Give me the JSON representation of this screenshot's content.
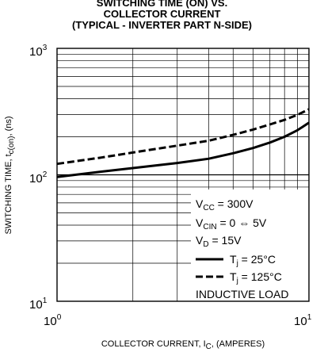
{
  "chart_data": {
    "type": "line",
    "title_lines": [
      "SWITCHING TIME (ON) VS.",
      "COLLECTOR CURRENT",
      "(TYPICAL - INVERTER PART N-SIDE)"
    ],
    "xlabel": {
      "main": "COLLECTOR CURRENT, I",
      "sub": "C",
      "tail": ", (AMPERES)"
    },
    "ylabel": {
      "main": "SWITCHING TIME, t",
      "sub": "c(on)",
      "tail": ", (ns)"
    },
    "x_scale": "log",
    "y_scale": "log",
    "xlim": [
      1,
      10
    ],
    "ylim": [
      10,
      1000
    ],
    "x_ticks": [
      {
        "base": "10",
        "exp": "0"
      },
      {
        "base": "10",
        "exp": "1"
      }
    ],
    "y_ticks": [
      {
        "base": "10",
        "exp": "1"
      },
      {
        "base": "10",
        "exp": "2"
      },
      {
        "base": "10",
        "exp": "3"
      }
    ],
    "grid": true,
    "series": [
      {
        "name": "Tj = 25°C",
        "label_main": "T",
        "label_sub": "j",
        "label_tail": " = 25°C",
        "style": "solid",
        "x": [
          1,
          1.5,
          2,
          3,
          4,
          5,
          6,
          7,
          8,
          9,
          10
        ],
        "y": [
          96,
          106,
          113,
          124,
          134,
          148,
          163,
          180,
          200,
          225,
          258
        ]
      },
      {
        "name": "Tj = 125°C",
        "label_main": "T",
        "label_sub": "j",
        "label_tail": " = 125°C",
        "style": "dashed",
        "x": [
          1,
          1.5,
          2,
          3,
          4,
          5,
          6,
          7,
          8,
          9,
          10
        ],
        "y": [
          122,
          137,
          150,
          170,
          186,
          207,
          228,
          250,
          272,
          298,
          330
        ]
      }
    ],
    "conditions": [
      {
        "main": "V",
        "sub": "CC",
        "tail": " = 300V"
      },
      {
        "main": "V",
        "sub": "CIN",
        "tail": " = 0 ⇔ 5V"
      },
      {
        "main": "V",
        "sub": "D",
        "tail": " = 15V"
      }
    ],
    "note": "INDUCTIVE LOAD",
    "legend_position": "bottom-right"
  }
}
